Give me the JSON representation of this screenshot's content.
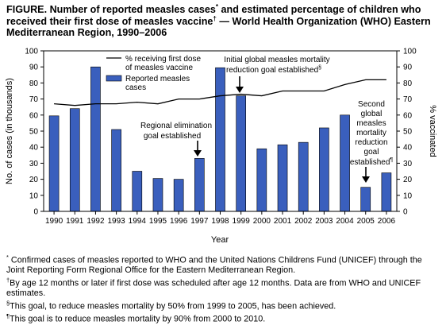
{
  "title": {
    "prefix": "FIGURE. Number of reported measles cases",
    "mark1": "*",
    "middle": " and estimated percentage of children who received their first dose of measles vaccine",
    "mark2": "†",
    "suffix": " — World Health Organization (WHO) Eastern Mediterranean Region, 1990–2006"
  },
  "chart_data": {
    "type": "bar",
    "categories": [
      "1990",
      "1991",
      "1992",
      "1993",
      "1994",
      "1995",
      "1996",
      "1997",
      "1998",
      "1999",
      "2000",
      "2001",
      "2002",
      "2003",
      "2004",
      "2005",
      "2006"
    ],
    "series": [
      {
        "name": "Reported measles cases",
        "type": "bar",
        "axis": "left",
        "color": "#3a5fbd",
        "values": [
          59.5,
          64,
          90,
          51,
          25,
          20.5,
          20,
          33,
          89.5,
          72,
          39,
          41.5,
          43,
          52,
          60,
          15,
          24
        ]
      },
      {
        "name": "% receiving first dose of measles vaccine",
        "type": "line",
        "axis": "right",
        "color": "#000000",
        "values": [
          67,
          66,
          67,
          67,
          68,
          67,
          70,
          70,
          72,
          73,
          72,
          75,
          75,
          75,
          79,
          82,
          82
        ]
      }
    ],
    "xlabel": "Year",
    "ylabel_left": "No. of cases (in thousands)",
    "ylabel_right": "% vaccinated",
    "ylim_left": [
      0,
      100
    ],
    "ylim_right": [
      0,
      100
    ],
    "yticks_left": [
      "0",
      "10",
      "20",
      "30",
      "40",
      "50",
      "60",
      "70",
      "80",
      "90",
      "100"
    ],
    "yticks_right": [
      "0",
      "10",
      "20",
      "30",
      "40",
      "50",
      "60",
      "70",
      "80",
      "90",
      "100"
    ],
    "grid": false,
    "legend": {
      "placement": "top-left",
      "line_label_1": "% receiving first dose",
      "line_label_2": "of measles vaccine",
      "bar_label_1": "Reported measles",
      "bar_label_2": "cases"
    },
    "annotations": {
      "initial_goal": {
        "lines": [
          "Initial global measles mortality",
          "reduction goal established"
        ],
        "mark": "§",
        "year": "1999"
      },
      "regional_goal": {
        "lines": [
          "Regional elimination",
          "goal established"
        ],
        "year": "1997"
      },
      "second_goal": {
        "lines": [
          "Second",
          "global",
          "measles",
          "mortality",
          "reduction",
          "goal",
          "established"
        ],
        "mark": "¶",
        "year": "2005"
      }
    }
  },
  "footnotes": [
    {
      "mark": "*",
      "text": "Confirmed cases of measles reported to WHO and the United Nations Childrens Fund (UNICEF) through the Joint Reporting Form Regional Office for the Eastern Mediterranean Region."
    },
    {
      "mark": "†",
      "text": "By age 12 months or later if first dose was scheduled after age 12 months. Data are from WHO and UNICEF estimates."
    },
    {
      "mark": "§",
      "text": "This goal, to reduce measles mortality by 50% from 1999 to 2005, has been achieved."
    },
    {
      "mark": "¶",
      "text": "This goal is to reduce measles mortality by 90% from 2000 to 2010."
    }
  ]
}
